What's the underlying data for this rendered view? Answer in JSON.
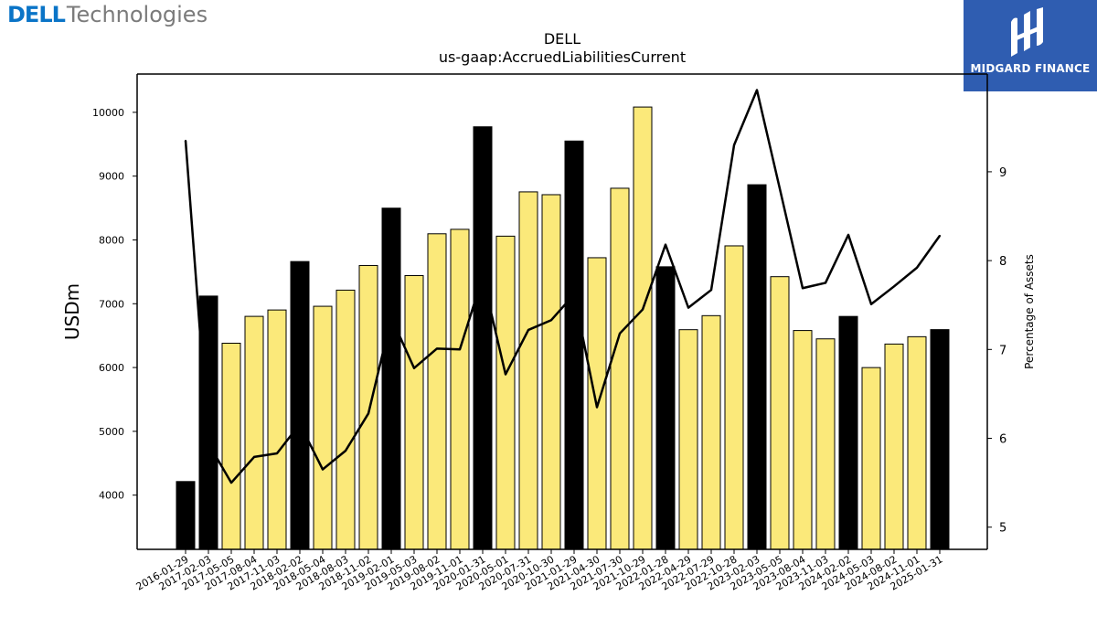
{
  "brand": {
    "left_logo": "DELLTechnologies",
    "right_logo": "MIDGARD FINANCE"
  },
  "colors": {
    "bar_highlight": "#000000",
    "bar_normal": "#fbe97a",
    "bar_edge": "#000000",
    "line": "#000000",
    "brand_blue": "#2f5db1",
    "dell_blue": "#0a74c7"
  },
  "chart_data": {
    "type": "bar",
    "title": "DELL",
    "subtitle": "us-gaap:AccruedLiabilitiesCurrent",
    "ylabel": "USDm",
    "y2label": "Percentage of Assets",
    "ylim": [
      3150,
      10600
    ],
    "y2lim": [
      4.75,
      10.1
    ],
    "yticks": [
      4000,
      5000,
      6000,
      7000,
      8000,
      9000,
      10000
    ],
    "y2ticks": [
      5,
      6,
      7,
      8,
      9
    ],
    "grid": false,
    "categories": [
      "2016-01-29",
      "2017-02-03",
      "2017-05-05",
      "2017-08-04",
      "2017-11-03",
      "2018-02-02",
      "2018-05-04",
      "2018-08-03",
      "2018-11-02",
      "2019-02-01",
      "2019-05-03",
      "2019-08-02",
      "2019-11-01",
      "2020-01-31",
      "2020-05-01",
      "2020-07-31",
      "2020-10-30",
      "2021-01-29",
      "2021-04-30",
      "2021-07-30",
      "2021-10-29",
      "2022-01-28",
      "2022-04-29",
      "2022-07-29",
      "2022-10-28",
      "2023-02-03",
      "2023-05-05",
      "2023-08-04",
      "2023-11-03",
      "2024-02-02",
      "2024-05-03",
      "2024-08-02",
      "2024-11-01",
      "2025-01-31"
    ],
    "series": [
      {
        "type": "bar",
        "values": [
          4213,
          7120,
          6381,
          6802,
          6902,
          7661,
          6960,
          7213,
          7599,
          8498,
          7441,
          8096,
          8166,
          9773,
          8059,
          8753,
          8709,
          9550,
          7721,
          8810,
          10083,
          7579,
          6593,
          6813,
          7907,
          8865,
          7424,
          6580,
          6449,
          6801,
          5999,
          6368,
          6483,
          6594
        ],
        "annual": [
          true,
          true,
          false,
          false,
          false,
          true,
          false,
          false,
          false,
          true,
          false,
          false,
          false,
          true,
          false,
          false,
          false,
          true,
          false,
          false,
          false,
          true,
          false,
          false,
          false,
          true,
          false,
          false,
          false,
          true,
          false,
          false,
          false,
          true
        ]
      },
      {
        "type": "line",
        "axis": "right",
        "values": [
          9.35,
          5.94,
          5.5,
          5.79,
          5.83,
          6.16,
          5.65,
          5.86,
          6.28,
          7.36,
          6.79,
          7.01,
          7.0,
          7.82,
          6.72,
          7.22,
          7.33,
          7.62,
          6.35,
          7.18,
          7.45,
          8.18,
          7.47,
          7.67,
          9.3,
          9.92,
          8.81,
          7.69,
          7.75,
          8.29,
          7.51,
          7.71,
          7.92,
          8.28
        ]
      }
    ]
  }
}
